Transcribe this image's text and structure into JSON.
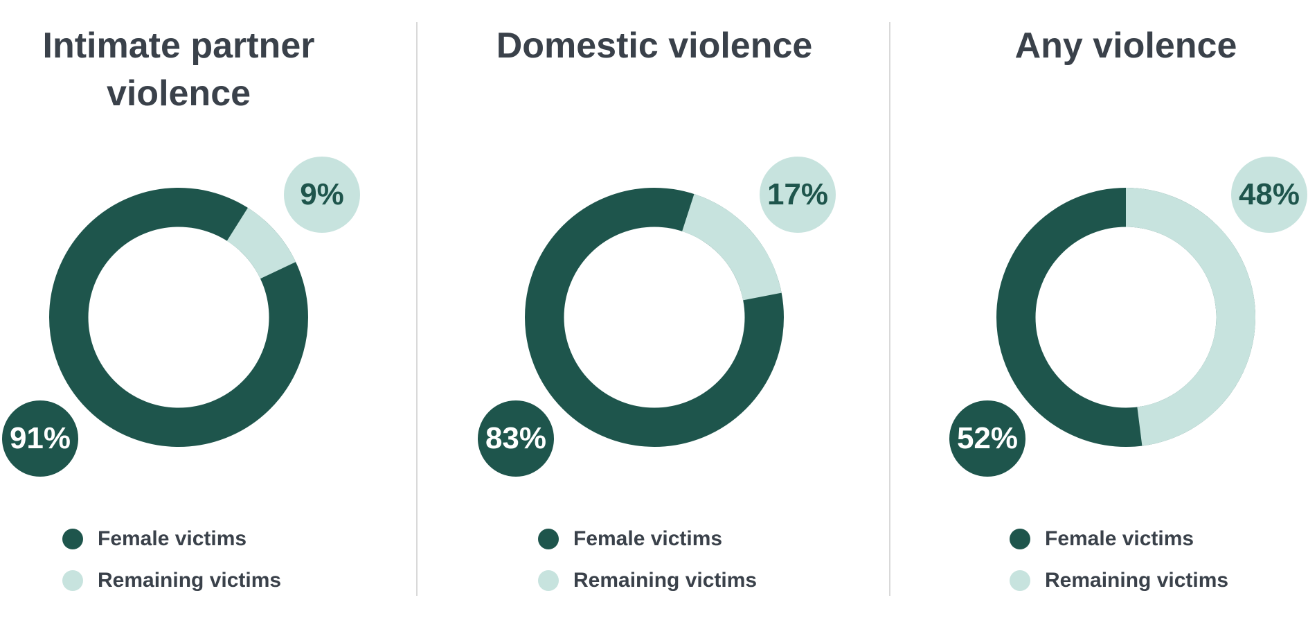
{
  "palette": {
    "dark_teal": "#1e554c",
    "light_teal": "#c7e3de",
    "heading_text": "#3a414a",
    "divider": "#d9d9d9"
  },
  "charts": [
    {
      "title_line1": "Intimate partner",
      "title_line2": "violence",
      "female_pct_label": "91%",
      "remaining_pct_label": "9%",
      "legend_female": "Female victims",
      "legend_remaining": "Remaining victims"
    },
    {
      "title_line1": "Domestic violence",
      "female_pct_label": "83%",
      "remaining_pct_label": "17%",
      "legend_female": "Female victims",
      "legend_remaining": "Remaining victims"
    },
    {
      "title_line1": "Any violence",
      "female_pct_label": "52%",
      "remaining_pct_label": "48%",
      "legend_female": "Female victims",
      "legend_remaining": "Remaining victims"
    }
  ],
  "chart_data": [
    {
      "type": "pie",
      "subtype": "donut",
      "title": "Intimate partner violence",
      "labels": [
        "Female victims",
        "Remaining victims"
      ],
      "values": [
        91,
        9
      ],
      "colors": [
        "#1e554c",
        "#c7e3de"
      ],
      "annotations": [
        "91%",
        "9%"
      ],
      "legend_position": "bottom-left"
    },
    {
      "type": "pie",
      "subtype": "donut",
      "title": "Domestic violence",
      "labels": [
        "Female victims",
        "Remaining victims"
      ],
      "values": [
        83,
        17
      ],
      "colors": [
        "#1e554c",
        "#c7e3de"
      ],
      "annotations": [
        "83%",
        "17%"
      ],
      "legend_position": "bottom-left"
    },
    {
      "type": "pie",
      "subtype": "donut",
      "title": "Any violence",
      "labels": [
        "Female victims",
        "Remaining victims"
      ],
      "values": [
        52,
        48
      ],
      "colors": [
        "#1e554c",
        "#c7e3de"
      ],
      "annotations": [
        "52%",
        "48%"
      ],
      "legend_position": "bottom-left"
    }
  ]
}
